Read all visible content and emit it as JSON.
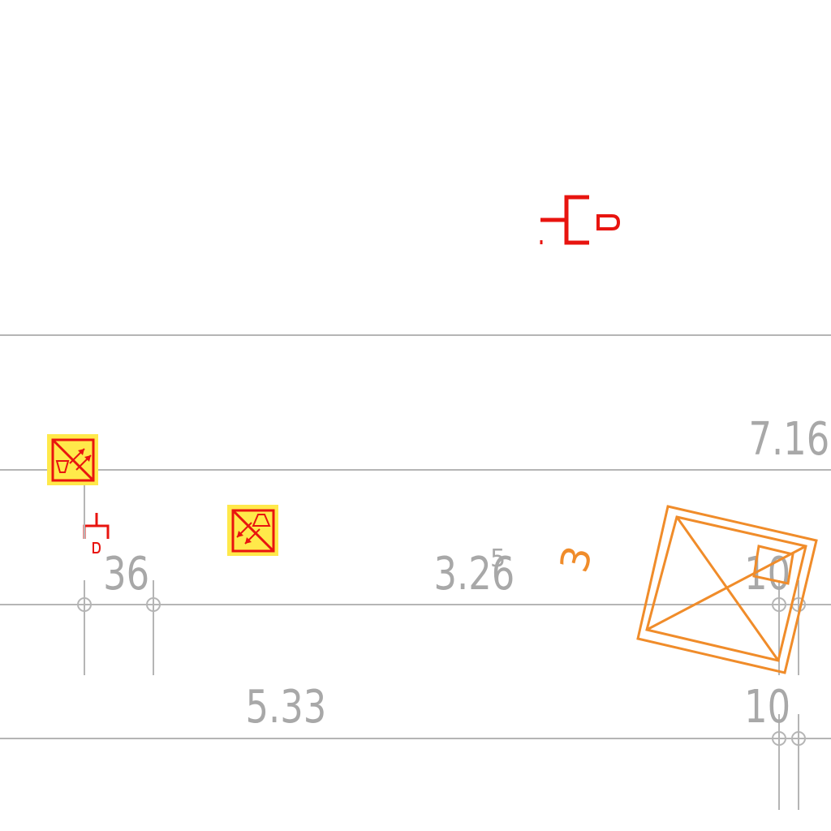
{
  "drawing": {
    "labels": {
      "dim_top_right": "7.16",
      "dim_left": "36",
      "dim_center_main": "3.26",
      "dim_center_sup": "5",
      "dim_right_mid": "10",
      "dim_bottom_center": "5.33",
      "dim_bottom_right": "10",
      "room_number": "3"
    },
    "symbols": [
      "red-switch-symbol-large",
      "red-switch-symbol-small",
      "yellow-fixture-symbol-top-left",
      "yellow-fixture-symbol-middle",
      "orange-rotated-box"
    ],
    "colors": {
      "dimension_text": "#a8a8a8",
      "grid_lines": "#b5b5b5",
      "symbol_red": "#e8140f",
      "fixture_yellow": "#ffe94a",
      "box_orange": "#f08c2a"
    }
  }
}
